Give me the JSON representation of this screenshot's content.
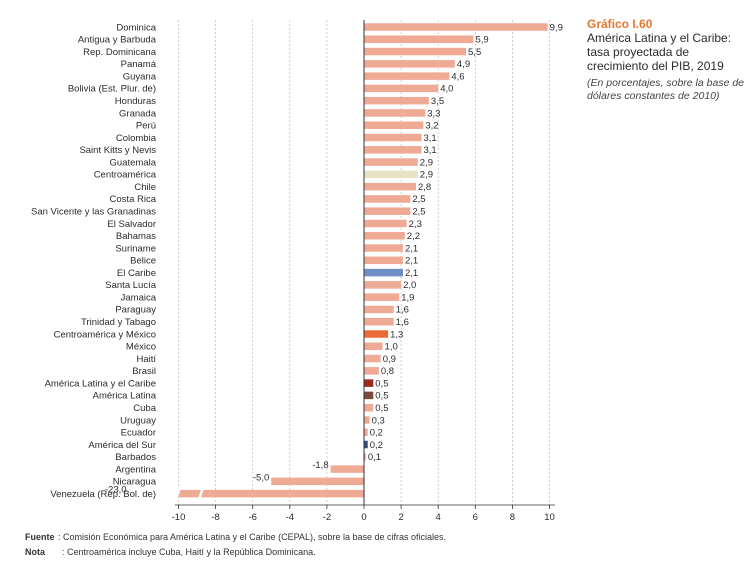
{
  "figure": {
    "number": "Gráfico I.60",
    "title": "América Latina y el Caribe: tasa proyectada de crecimiento del PIB, 2019",
    "subtitle": "(En porcentajes, sobre la base de dólares constantes de 2010)"
  },
  "notes": {
    "source_label": "Fuente",
    "source_text": ": Comisión Económica para América Latina y el Caribe (CEPAL), sobre la base de cifras oficiales.",
    "note_label": "Nota",
    "note_text": ": Centroamérica incluye Cuba, Haití y la República Dominicana."
  },
  "chart_data": {
    "type": "bar",
    "orientation": "horizontal",
    "title": "",
    "xlabel": "",
    "ylabel": "",
    "xlim": [
      -10,
      10
    ],
    "x_ticks": [
      "-10",
      "-8",
      "-6",
      "-4",
      "-2",
      "0",
      "2",
      "4",
      "6",
      "8",
      "10"
    ],
    "grid": "vertical dashed",
    "categories": [
      "Dominica",
      "Antigua y Barbuda",
      "Rep. Dominicana",
      "Panamá",
      "Guyana",
      "Bolivia (Est. Plur. de)",
      "Honduras",
      "Granada",
      "Perú",
      "Colombia",
      "Saint Kitts y Nevis",
      "Guatemala",
      "Centroamérica",
      "Chile",
      "Costa Rica",
      "San Vicente y las Granadinas",
      "El Salvador",
      "Bahamas",
      "Suriname",
      "Belice",
      "El Caribe",
      "Santa Lucía",
      "Jamaica",
      "Paraguay",
      "Trinidad y Tabago",
      "Centroamérica y México",
      "México",
      "Haití",
      "Brasil",
      "América Latina y el Caribe",
      "América Latina",
      "Cuba",
      "Uruguay",
      "Ecuador",
      "América del Sur",
      "Barbados",
      "Argentina",
      "Nicaragua",
      "Venezuela (Rep. Bol. de)"
    ],
    "values": [
      9.9,
      5.9,
      5.5,
      4.9,
      4.6,
      4.0,
      3.5,
      3.3,
      3.2,
      3.1,
      3.1,
      2.9,
      2.9,
      2.8,
      2.5,
      2.5,
      2.3,
      2.2,
      2.1,
      2.1,
      2.1,
      2.0,
      1.9,
      1.6,
      1.6,
      1.3,
      1.0,
      0.9,
      0.8,
      0.5,
      0.5,
      0.5,
      0.3,
      0.2,
      0.2,
      0.1,
      -1.8,
      -5.0,
      -23.0
    ],
    "value_labels": [
      "9,9",
      "5,9",
      "5,5",
      "4,9",
      "4,6",
      "4,0",
      "3,5",
      "3,3",
      "3,2",
      "3,1",
      "3,1",
      "2,9",
      "2,9",
      "2,8",
      "2,5",
      "2,5",
      "2,3",
      "2,2",
      "2,1",
      "2,1",
      "2,1",
      "2,0",
      "1,9",
      "1,6",
      "1,6",
      "1,3",
      "1,0",
      "0,9",
      "0,8",
      "0,5",
      "0,5",
      "0,5",
      "0,3",
      "0,2",
      "0,2",
      "0,1",
      "-1,8",
      "-5,0",
      "-23,0"
    ],
    "colors": {
      "default": "#eeaa94",
      "Centroamérica": "#e8e2c2",
      "El Caribe": "#6f8ec6",
      "Centroamérica y México": "#e96a36",
      "América Latina y el Caribe": "#9e2b1f",
      "América Latina": "#7a4a3c",
      "América del Sur": "#2e4a82"
    },
    "axis_color": "#333333"
  }
}
